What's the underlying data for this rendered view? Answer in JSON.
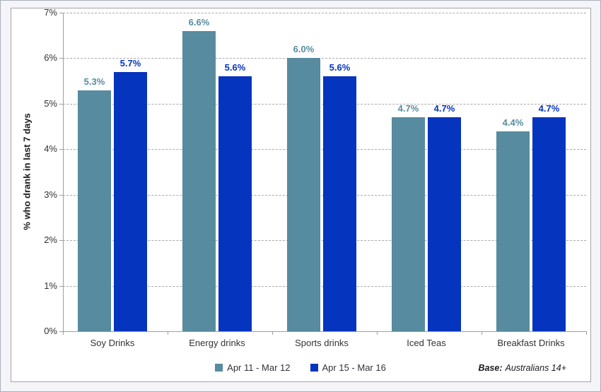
{
  "chart_data": {
    "type": "bar",
    "title": "",
    "categories": [
      "Soy Drinks",
      "Energy drinks",
      "Sports drinks",
      "Iced Teas",
      "Breakfast Drinks"
    ],
    "series": [
      {
        "name": "Apr 11 - Mar 12",
        "color": "#578BA0",
        "values": [
          5.3,
          6.6,
          6.0,
          4.7,
          4.4
        ]
      },
      {
        "name": "Apr 15 - Mar 16",
        "color": "#0534BE",
        "values": [
          5.7,
          5.6,
          5.6,
          4.7,
          4.7
        ]
      }
    ],
    "ylabel": "% who drank in last 7 days",
    "xlabel": "",
    "ylim": [
      0,
      7
    ],
    "ytick_step": 1,
    "yticks": [
      "0%",
      "1%",
      "2%",
      "3%",
      "4%",
      "5%",
      "6%",
      "7%"
    ],
    "value_suffix": "%",
    "grid": "horizontal-dashed",
    "legend_position": "bottom-center",
    "accent_colors": {
      "series_1": "#578BA0",
      "series_2": "#0534BE",
      "gridline": "#a9a9a9",
      "axis_text": "#333333"
    }
  },
  "footer": {
    "base_label": "Base:",
    "base_text": "Australians 14+"
  }
}
